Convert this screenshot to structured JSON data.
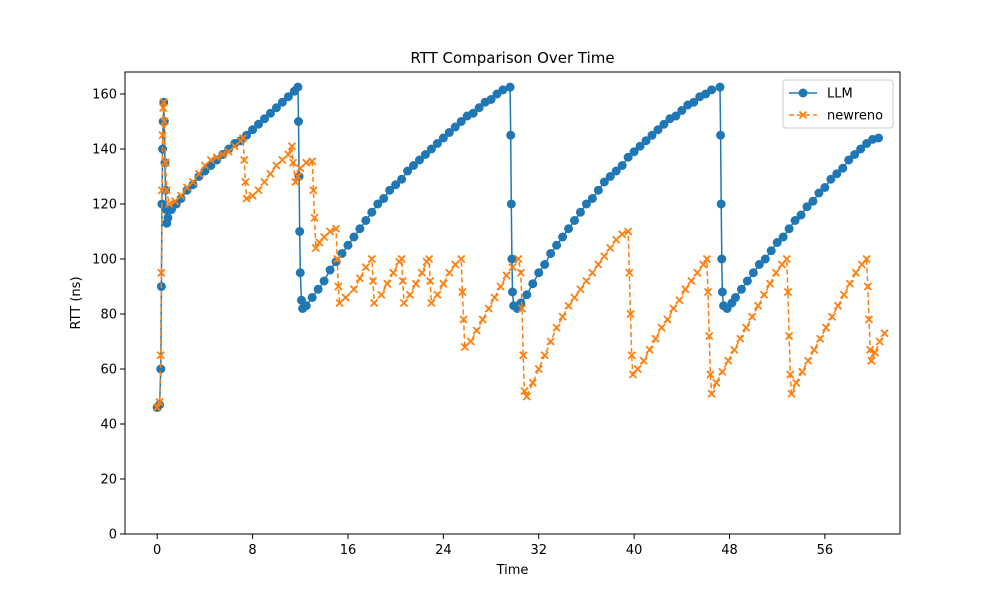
{
  "chart_data": {
    "type": "line",
    "title": "RTT Comparison Over Time",
    "xlabel": "Time",
    "ylabel": "RTT (ns)",
    "xlim": [
      -2.7,
      62.3
    ],
    "ylim": [
      0,
      168
    ],
    "xticks": [
      0,
      8,
      16,
      24,
      32,
      40,
      48,
      56
    ],
    "yticks": [
      0,
      20,
      40,
      60,
      80,
      100,
      120,
      140,
      160
    ],
    "grid": false,
    "legend_position": "top-right",
    "series": [
      {
        "name": "LLM",
        "color": "#1f77b4",
        "marker": "circle",
        "linestyle": "solid",
        "points": [
          [
            0.0,
            46
          ],
          [
            0.2,
            47
          ],
          [
            0.3,
            60
          ],
          [
            0.35,
            90
          ],
          [
            0.4,
            120
          ],
          [
            0.45,
            140
          ],
          [
            0.5,
            150
          ],
          [
            0.55,
            157
          ],
          [
            0.6,
            150
          ],
          [
            0.65,
            135
          ],
          [
            0.7,
            125
          ],
          [
            0.75,
            118
          ],
          [
            0.8,
            113
          ],
          [
            0.9,
            115
          ],
          [
            1.2,
            118
          ],
          [
            1.6,
            120
          ],
          [
            2.0,
            122
          ],
          [
            2.5,
            125
          ],
          [
            3.0,
            127
          ],
          [
            3.5,
            130
          ],
          [
            4.0,
            132
          ],
          [
            4.5,
            134
          ],
          [
            5.0,
            136
          ],
          [
            5.5,
            138
          ],
          [
            6.0,
            140
          ],
          [
            6.5,
            142
          ],
          [
            7.0,
            143
          ],
          [
            7.5,
            145
          ],
          [
            8.0,
            147
          ],
          [
            8.5,
            149
          ],
          [
            9.0,
            151
          ],
          [
            9.5,
            153
          ],
          [
            10.0,
            155
          ],
          [
            10.5,
            157
          ],
          [
            11.0,
            159
          ],
          [
            11.5,
            161
          ],
          [
            11.8,
            162.5
          ],
          [
            11.85,
            150
          ],
          [
            11.9,
            130
          ],
          [
            11.95,
            110
          ],
          [
            12.0,
            95
          ],
          [
            12.1,
            85
          ],
          [
            12.2,
            82
          ],
          [
            12.5,
            83
          ],
          [
            13.0,
            86
          ],
          [
            13.5,
            89
          ],
          [
            14.0,
            92
          ],
          [
            14.5,
            96
          ],
          [
            15.0,
            99
          ],
          [
            15.5,
            102
          ],
          [
            16.0,
            105
          ],
          [
            16.5,
            108
          ],
          [
            17.0,
            111
          ],
          [
            17.5,
            114
          ],
          [
            18.0,
            117
          ],
          [
            18.5,
            120
          ],
          [
            19.0,
            122
          ],
          [
            19.5,
            125
          ],
          [
            20.0,
            127
          ],
          [
            20.5,
            129
          ],
          [
            21.0,
            132
          ],
          [
            21.5,
            134
          ],
          [
            22.0,
            136
          ],
          [
            22.5,
            138
          ],
          [
            23.0,
            140
          ],
          [
            23.5,
            142
          ],
          [
            24.0,
            144
          ],
          [
            24.5,
            146
          ],
          [
            25.0,
            148
          ],
          [
            25.5,
            150
          ],
          [
            26.0,
            152
          ],
          [
            26.5,
            153
          ],
          [
            27.0,
            155
          ],
          [
            27.5,
            157
          ],
          [
            28.0,
            158
          ],
          [
            28.5,
            160
          ],
          [
            29.0,
            161.5
          ],
          [
            29.6,
            162.5
          ],
          [
            29.65,
            145
          ],
          [
            29.7,
            120
          ],
          [
            29.75,
            100
          ],
          [
            29.8,
            88
          ],
          [
            29.9,
            83
          ],
          [
            30.2,
            82
          ],
          [
            30.5,
            84
          ],
          [
            31.0,
            87
          ],
          [
            31.5,
            91
          ],
          [
            32.0,
            95
          ],
          [
            32.5,
            98
          ],
          [
            33.0,
            102
          ],
          [
            33.5,
            105
          ],
          [
            34.0,
            108
          ],
          [
            34.5,
            111
          ],
          [
            35.0,
            114
          ],
          [
            35.5,
            117
          ],
          [
            36.0,
            120
          ],
          [
            36.5,
            122
          ],
          [
            37.0,
            125
          ],
          [
            37.5,
            128
          ],
          [
            38.0,
            130
          ],
          [
            38.5,
            132
          ],
          [
            39.0,
            134
          ],
          [
            39.5,
            137
          ],
          [
            40.0,
            139
          ],
          [
            40.5,
            141
          ],
          [
            41.0,
            143
          ],
          [
            41.5,
            145
          ],
          [
            42.0,
            147
          ],
          [
            42.5,
            149
          ],
          [
            43.0,
            151
          ],
          [
            43.5,
            152
          ],
          [
            44.0,
            154
          ],
          [
            44.5,
            156
          ],
          [
            45.0,
            157
          ],
          [
            45.5,
            159
          ],
          [
            46.0,
            160
          ],
          [
            46.5,
            161.5
          ],
          [
            47.2,
            162.5
          ],
          [
            47.25,
            145
          ],
          [
            47.3,
            120
          ],
          [
            47.35,
            100
          ],
          [
            47.4,
            88
          ],
          [
            47.5,
            83
          ],
          [
            47.8,
            82
          ],
          [
            48.2,
            84
          ],
          [
            48.5,
            86
          ],
          [
            49.0,
            89
          ],
          [
            49.5,
            92
          ],
          [
            50.0,
            95
          ],
          [
            50.5,
            98
          ],
          [
            51.0,
            100
          ],
          [
            51.5,
            103
          ],
          [
            52.0,
            106
          ],
          [
            52.5,
            108
          ],
          [
            53.0,
            111
          ],
          [
            53.5,
            114
          ],
          [
            54.0,
            116
          ],
          [
            54.5,
            119
          ],
          [
            55.0,
            121
          ],
          [
            55.5,
            124
          ],
          [
            56.0,
            126
          ],
          [
            56.5,
            129
          ],
          [
            57.0,
            131
          ],
          [
            57.5,
            133
          ],
          [
            58.0,
            136
          ],
          [
            58.5,
            138
          ],
          [
            59.0,
            140
          ],
          [
            59.5,
            142
          ],
          [
            60.0,
            143.5
          ],
          [
            60.5,
            144
          ]
        ]
      },
      {
        "name": "newreno",
        "color": "#ff7f0e",
        "marker": "x",
        "linestyle": "dashed",
        "points": [
          [
            0.0,
            46
          ],
          [
            0.2,
            48
          ],
          [
            0.3,
            65
          ],
          [
            0.35,
            95
          ],
          [
            0.4,
            125
          ],
          [
            0.45,
            145
          ],
          [
            0.5,
            155
          ],
          [
            0.55,
            157
          ],
          [
            0.6,
            150
          ],
          [
            0.7,
            135
          ],
          [
            0.8,
            125
          ],
          [
            1.0,
            120
          ],
          [
            1.5,
            121
          ],
          [
            2.0,
            123
          ],
          [
            2.5,
            126
          ],
          [
            3.0,
            128
          ],
          [
            3.5,
            131
          ],
          [
            4.0,
            134
          ],
          [
            4.5,
            136
          ],
          [
            5.0,
            137
          ],
          [
            5.5,
            138
          ],
          [
            6.0,
            139
          ],
          [
            6.5,
            141
          ],
          [
            7.0,
            143
          ],
          [
            7.2,
            144
          ],
          [
            7.3,
            136
          ],
          [
            7.4,
            128
          ],
          [
            7.5,
            122
          ],
          [
            8.0,
            123
          ],
          [
            8.5,
            125
          ],
          [
            9.0,
            128
          ],
          [
            9.5,
            131
          ],
          [
            10.0,
            134
          ],
          [
            10.5,
            136
          ],
          [
            11.0,
            138
          ],
          [
            11.3,
            141
          ],
          [
            11.4,
            135
          ],
          [
            11.6,
            128
          ],
          [
            11.8,
            130
          ],
          [
            12.0,
            133
          ],
          [
            12.5,
            135
          ],
          [
            13.0,
            135.5
          ],
          [
            13.1,
            125
          ],
          [
            13.2,
            115
          ],
          [
            13.3,
            104
          ],
          [
            13.6,
            106
          ],
          [
            14.0,
            108
          ],
          [
            14.5,
            110
          ],
          [
            15.0,
            111
          ],
          [
            15.1,
            100
          ],
          [
            15.2,
            90
          ],
          [
            15.3,
            84
          ],
          [
            15.8,
            86
          ],
          [
            16.5,
            89
          ],
          [
            17.0,
            93
          ],
          [
            17.5,
            97
          ],
          [
            18.0,
            100
          ],
          [
            18.1,
            92
          ],
          [
            18.2,
            84
          ],
          [
            18.8,
            87
          ],
          [
            19.3,
            91
          ],
          [
            19.8,
            95
          ],
          [
            20.3,
            99
          ],
          [
            20.5,
            100
          ],
          [
            20.6,
            92
          ],
          [
            20.7,
            84
          ],
          [
            21.2,
            87
          ],
          [
            21.7,
            91
          ],
          [
            22.2,
            95
          ],
          [
            22.6,
            99
          ],
          [
            22.8,
            100
          ],
          [
            22.9,
            92
          ],
          [
            23.0,
            84
          ],
          [
            23.5,
            87
          ],
          [
            24.0,
            91
          ],
          [
            24.5,
            95
          ],
          [
            25.0,
            98
          ],
          [
            25.5,
            100
          ],
          [
            25.6,
            88
          ],
          [
            25.7,
            78
          ],
          [
            25.8,
            68
          ],
          [
            26.3,
            70
          ],
          [
            26.8,
            74
          ],
          [
            27.3,
            78
          ],
          [
            27.8,
            82
          ],
          [
            28.3,
            86
          ],
          [
            28.8,
            90
          ],
          [
            29.3,
            94
          ],
          [
            29.8,
            97
          ],
          [
            30.3,
            100
          ],
          [
            30.5,
            95
          ],
          [
            30.6,
            82
          ],
          [
            30.7,
            65
          ],
          [
            30.8,
            52
          ],
          [
            31.0,
            50
          ],
          [
            31.5,
            55
          ],
          [
            32.0,
            60
          ],
          [
            32.5,
            65
          ],
          [
            33.0,
            70
          ],
          [
            33.5,
            75
          ],
          [
            34.0,
            79
          ],
          [
            34.5,
            83
          ],
          [
            35.0,
            86
          ],
          [
            35.5,
            89
          ],
          [
            36.0,
            92
          ],
          [
            36.5,
            95
          ],
          [
            37.0,
            98
          ],
          [
            37.5,
            101
          ],
          [
            38.0,
            104
          ],
          [
            38.5,
            107
          ],
          [
            39.0,
            109
          ],
          [
            39.5,
            110
          ],
          [
            39.6,
            95
          ],
          [
            39.7,
            80
          ],
          [
            39.8,
            65
          ],
          [
            39.9,
            58
          ],
          [
            40.3,
            60
          ],
          [
            40.8,
            63
          ],
          [
            41.3,
            67
          ],
          [
            41.8,
            71
          ],
          [
            42.3,
            75
          ],
          [
            42.8,
            78
          ],
          [
            43.3,
            82
          ],
          [
            43.8,
            85
          ],
          [
            44.3,
            89
          ],
          [
            44.8,
            92
          ],
          [
            45.3,
            95
          ],
          [
            45.8,
            98
          ],
          [
            46.1,
            100
          ],
          [
            46.2,
            88
          ],
          [
            46.3,
            72
          ],
          [
            46.4,
            58
          ],
          [
            46.5,
            51
          ],
          [
            46.9,
            55
          ],
          [
            47.4,
            59
          ],
          [
            47.9,
            63
          ],
          [
            48.4,
            67
          ],
          [
            48.9,
            71
          ],
          [
            49.4,
            75
          ],
          [
            49.9,
            79
          ],
          [
            50.4,
            83
          ],
          [
            50.9,
            87
          ],
          [
            51.4,
            91
          ],
          [
            51.9,
            95
          ],
          [
            52.4,
            98
          ],
          [
            52.8,
            100
          ],
          [
            52.9,
            88
          ],
          [
            53.0,
            72
          ],
          [
            53.1,
            58
          ],
          [
            53.2,
            51
          ],
          [
            53.6,
            55
          ],
          [
            54.1,
            59
          ],
          [
            54.6,
            63
          ],
          [
            55.1,
            67
          ],
          [
            55.6,
            71
          ],
          [
            56.1,
            75
          ],
          [
            56.6,
            79
          ],
          [
            57.1,
            83
          ],
          [
            57.6,
            87
          ],
          [
            58.1,
            91
          ],
          [
            58.6,
            95
          ],
          [
            59.1,
            98
          ],
          [
            59.5,
            100
          ],
          [
            59.6,
            90
          ],
          [
            59.7,
            78
          ],
          [
            59.8,
            67
          ],
          [
            59.9,
            63
          ],
          [
            60.2,
            66
          ],
          [
            60.6,
            70
          ],
          [
            61.0,
            73
          ]
        ]
      }
    ]
  }
}
